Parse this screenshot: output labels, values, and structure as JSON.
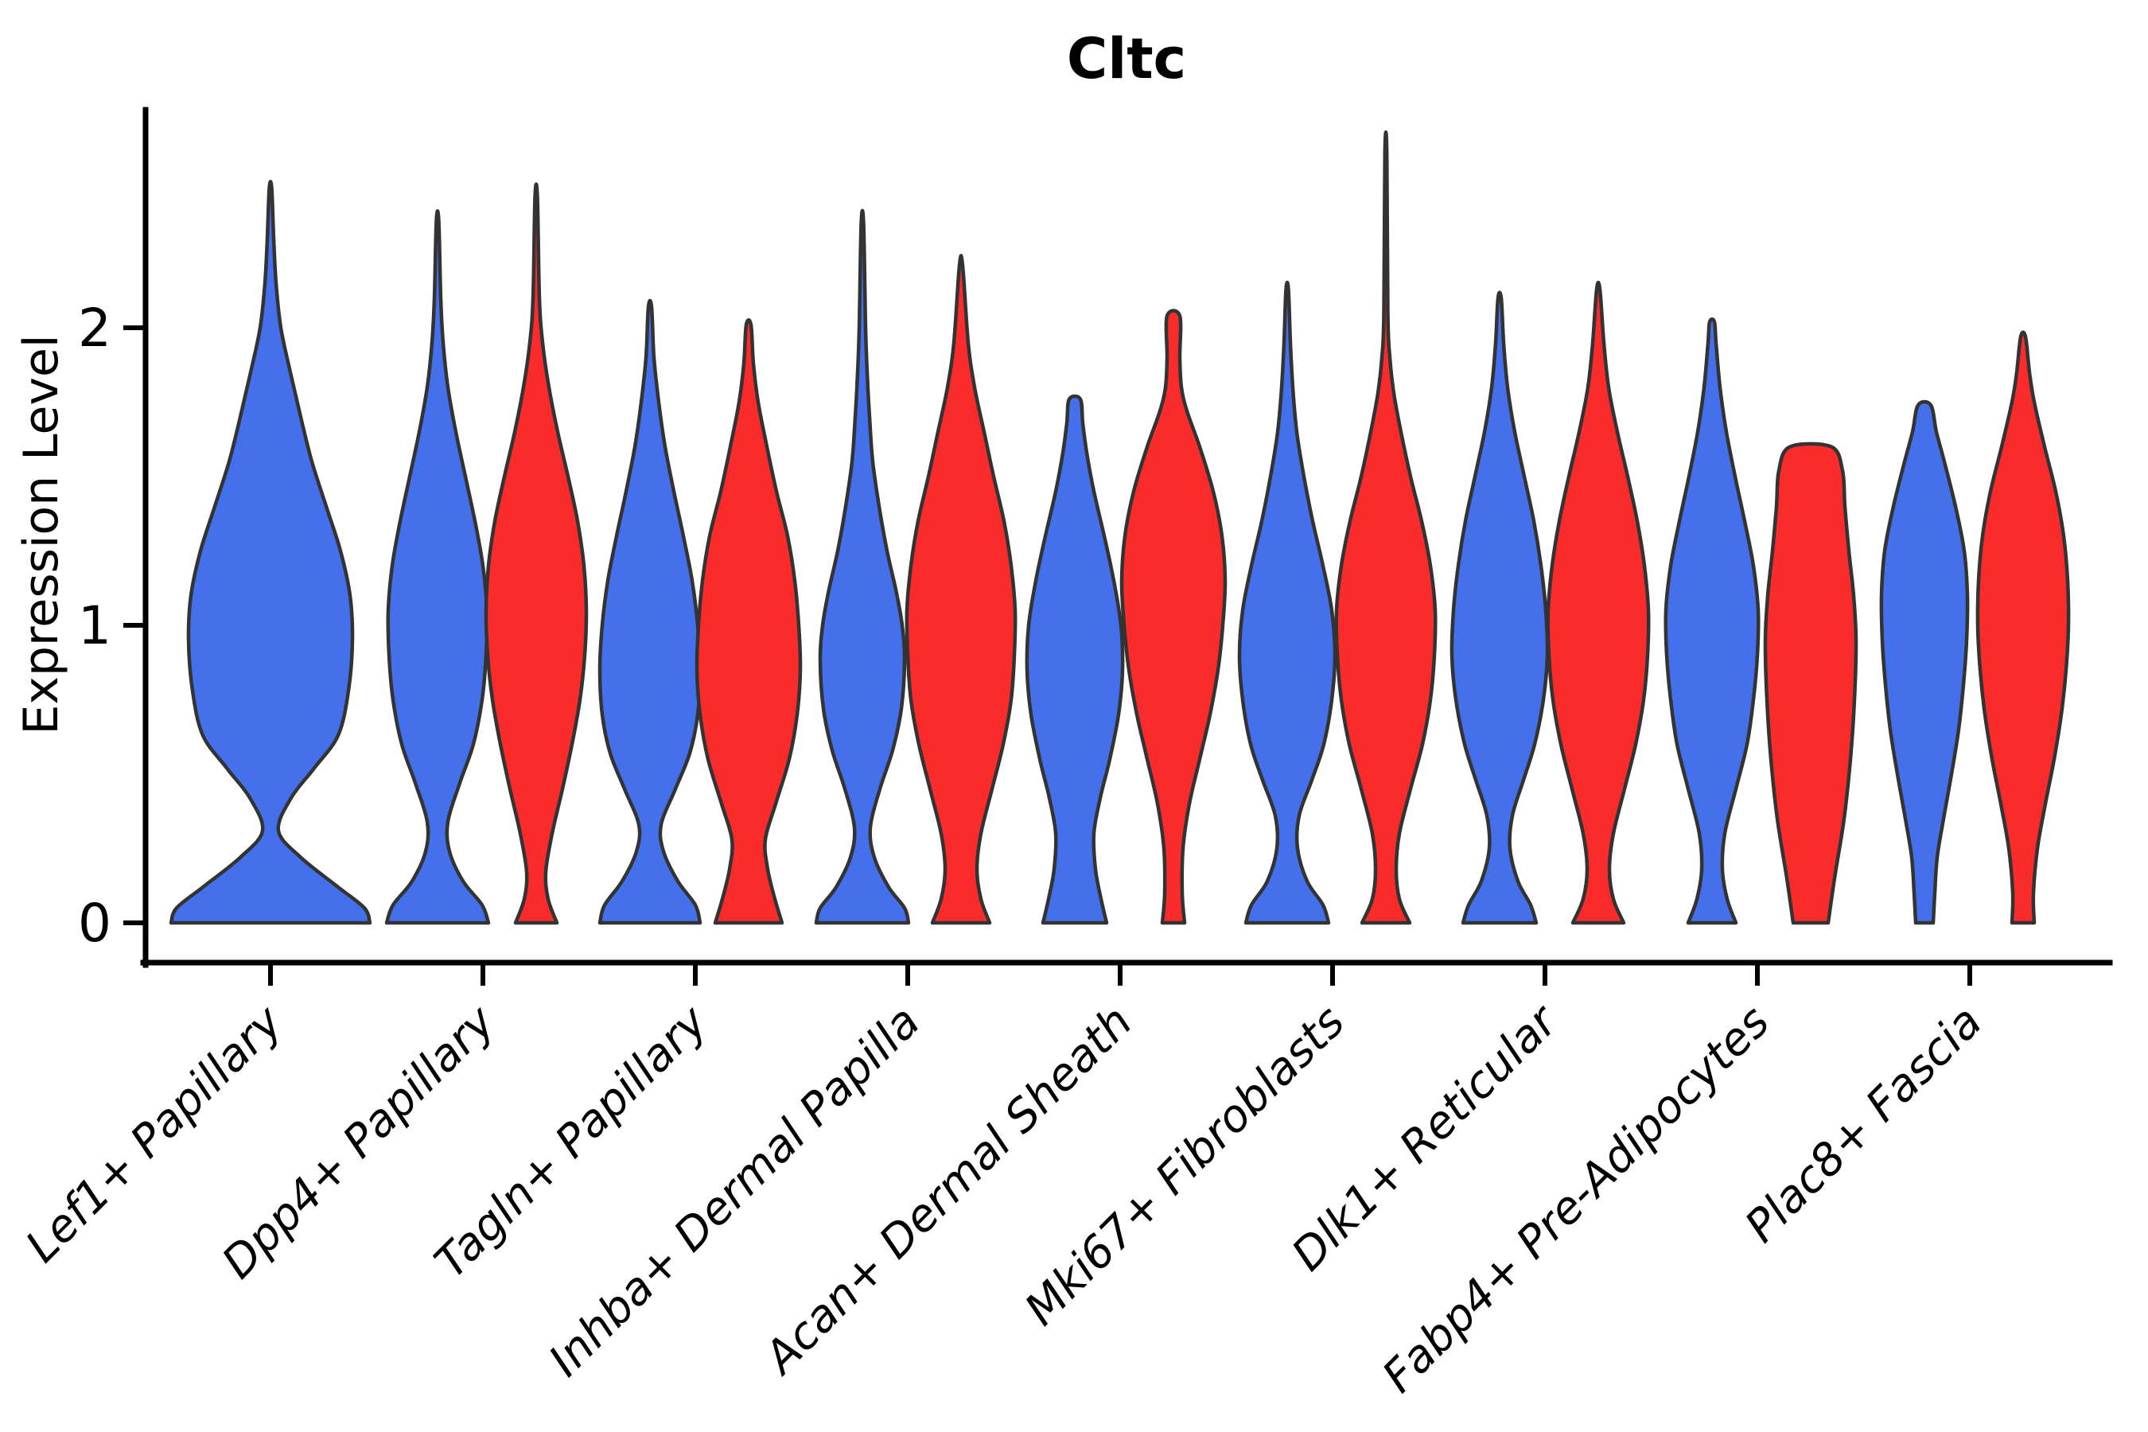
{
  "title": "Cltc",
  "y_axis": {
    "label": "Expression Level",
    "tick_labels": [
      "0",
      "1",
      "2"
    ]
  },
  "x_axis": {
    "categories": [
      "Lef1+ Papillary",
      "Dpp4+ Papillary",
      "Tagln+ Papillary",
      "Inhba+ Dermal Papilla",
      "Acan+ Dermal Sheath",
      "Mki67+ Fibroblasts",
      "Dlk1+ Reticular",
      "Fabp4+ Pre-Adipocytes",
      "Plac8+ Fascia"
    ]
  },
  "colors": {
    "blue": "#4470EC",
    "red": "#FA2B2B",
    "outline": "#333333",
    "axis": "#000000",
    "background": "#ffffff"
  },
  "chart_data": {
    "type": "violin",
    "title": "Cltc",
    "xlabel": "",
    "ylabel": "Expression Level",
    "y_ticks": [
      0,
      1,
      2
    ],
    "ylim": [
      -0.23,
      2.85
    ],
    "grid": false,
    "legend": "none",
    "categories": [
      "Lef1+ Papillary",
      "Dpp4+ Papillary",
      "Tagln+ Papillary",
      "Inhba+ Dermal Papilla",
      "Acan+ Dermal Sheath",
      "Mki67+ Fibroblasts",
      "Dlk1+ Reticular",
      "Fabp4+ Pre-Adipocytes",
      "Plac8+ Fascia"
    ],
    "series": [
      {
        "name": "blue",
        "color": "#4470EC"
      },
      {
        "name": "red",
        "color": "#FA2B2B"
      }
    ],
    "violins": [
      {
        "category_index": 0,
        "series": "blue",
        "position": "center",
        "peak_expression": 2.47,
        "profile": [
          [
            0,
            125
          ],
          [
            0.05,
            118
          ],
          [
            0.12,
            85
          ],
          [
            0.22,
            38
          ],
          [
            0.31,
            10
          ],
          [
            0.42,
            26
          ],
          [
            0.52,
            55
          ],
          [
            0.63,
            85
          ],
          [
            0.78,
            98
          ],
          [
            0.95,
            103
          ],
          [
            1.1,
            100
          ],
          [
            1.25,
            88
          ],
          [
            1.4,
            70
          ],
          [
            1.55,
            52
          ],
          [
            1.7,
            38
          ],
          [
            1.85,
            25
          ],
          [
            2.0,
            13
          ],
          [
            2.15,
            7
          ],
          [
            2.3,
            4
          ],
          [
            2.47,
            1.5
          ]
        ]
      },
      {
        "category_index": 1,
        "series": "blue",
        "position": "left",
        "peak_expression": 2.36,
        "profile": [
          [
            0,
            64
          ],
          [
            0.06,
            56
          ],
          [
            0.14,
            32
          ],
          [
            0.24,
            15
          ],
          [
            0.34,
            13
          ],
          [
            0.47,
            28
          ],
          [
            0.6,
            45
          ],
          [
            0.75,
            56
          ],
          [
            0.9,
            61
          ],
          [
            1.05,
            62
          ],
          [
            1.2,
            57
          ],
          [
            1.35,
            47
          ],
          [
            1.5,
            35
          ],
          [
            1.65,
            23
          ],
          [
            1.8,
            13
          ],
          [
            1.95,
            7
          ],
          [
            2.1,
            4
          ],
          [
            2.36,
            1.5
          ]
        ]
      },
      {
        "category_index": 1,
        "series": "red",
        "position": "right",
        "peak_expression": 2.44,
        "profile": [
          [
            0,
            26
          ],
          [
            0.08,
            15
          ],
          [
            0.17,
            12
          ],
          [
            0.3,
            20
          ],
          [
            0.45,
            33
          ],
          [
            0.6,
            45
          ],
          [
            0.75,
            55
          ],
          [
            0.9,
            61
          ],
          [
            1.05,
            63
          ],
          [
            1.2,
            60
          ],
          [
            1.35,
            52
          ],
          [
            1.5,
            40
          ],
          [
            1.65,
            27
          ],
          [
            1.8,
            16
          ],
          [
            1.95,
            8
          ],
          [
            2.1,
            4
          ],
          [
            2.44,
            1.5
          ]
        ]
      },
      {
        "category_index": 2,
        "series": "blue",
        "position": "left",
        "peak_expression": 2.07,
        "profile": [
          [
            0,
            63
          ],
          [
            0.06,
            57
          ],
          [
            0.14,
            35
          ],
          [
            0.24,
            17
          ],
          [
            0.33,
            14
          ],
          [
            0.45,
            32
          ],
          [
            0.57,
            50
          ],
          [
            0.7,
            60
          ],
          [
            0.85,
            63
          ],
          [
            1.0,
            60
          ],
          [
            1.15,
            53
          ],
          [
            1.3,
            42
          ],
          [
            1.45,
            30
          ],
          [
            1.6,
            19
          ],
          [
            1.75,
            11
          ],
          [
            1.9,
            5
          ],
          [
            2.07,
            2
          ]
        ]
      },
      {
        "category_index": 2,
        "series": "red",
        "position": "right",
        "peak_expression": 2.01,
        "profile": [
          [
            0,
            42
          ],
          [
            0.08,
            33
          ],
          [
            0.18,
            24
          ],
          [
            0.28,
            21
          ],
          [
            0.4,
            34
          ],
          [
            0.55,
            51
          ],
          [
            0.7,
            61
          ],
          [
            0.85,
            65
          ],
          [
            1.0,
            63
          ],
          [
            1.15,
            58
          ],
          [
            1.3,
            49
          ],
          [
            1.45,
            35
          ],
          [
            1.6,
            23
          ],
          [
            1.75,
            12
          ],
          [
            1.88,
            6
          ],
          [
            2.01,
            3
          ]
        ]
      },
      {
        "category_index": 3,
        "series": "blue",
        "position": "left",
        "peak_expression": 2.35,
        "profile": [
          [
            0,
            58
          ],
          [
            0.05,
            53
          ],
          [
            0.12,
            33
          ],
          [
            0.22,
            15
          ],
          [
            0.32,
            10
          ],
          [
            0.45,
            22
          ],
          [
            0.58,
            38
          ],
          [
            0.72,
            49
          ],
          [
            0.88,
            53
          ],
          [
            1.0,
            50
          ],
          [
            1.12,
            42
          ],
          [
            1.25,
            31
          ],
          [
            1.4,
            21
          ],
          [
            1.55,
            13
          ],
          [
            1.7,
            9
          ],
          [
            1.85,
            6
          ],
          [
            2.0,
            4
          ],
          [
            2.35,
            1.5
          ]
        ]
      },
      {
        "category_index": 3,
        "series": "red",
        "position": "right",
        "peak_expression": 2.21,
        "profile": [
          [
            0,
            36
          ],
          [
            0.08,
            25
          ],
          [
            0.18,
            20
          ],
          [
            0.3,
            25
          ],
          [
            0.45,
            39
          ],
          [
            0.6,
            53
          ],
          [
            0.75,
            63
          ],
          [
            0.9,
            67
          ],
          [
            1.05,
            68
          ],
          [
            1.2,
            63
          ],
          [
            1.35,
            54
          ],
          [
            1.5,
            41
          ],
          [
            1.65,
            29
          ],
          [
            1.8,
            17
          ],
          [
            1.95,
            9
          ],
          [
            2.21,
            2
          ]
        ]
      },
      {
        "category_index": 4,
        "series": "blue",
        "position": "left",
        "peak_expression": 1.76,
        "profile": [
          [
            0,
            40
          ],
          [
            0.08,
            33
          ],
          [
            0.18,
            26
          ],
          [
            0.3,
            24
          ],
          [
            0.42,
            32
          ],
          [
            0.55,
            44
          ],
          [
            0.7,
            55
          ],
          [
            0.85,
            60
          ],
          [
            1.0,
            58
          ],
          [
            1.15,
            49
          ],
          [
            1.3,
            37
          ],
          [
            1.45,
            24
          ],
          [
            1.58,
            15
          ],
          [
            1.68,
            10
          ],
          [
            1.76,
            7
          ]
        ]
      },
      {
        "category_index": 4,
        "series": "red",
        "position": "right",
        "peak_expression": 2.04,
        "profile": [
          [
            0,
            14
          ],
          [
            0.1,
            11
          ],
          [
            0.25,
            12
          ],
          [
            0.4,
            20
          ],
          [
            0.55,
            33
          ],
          [
            0.7,
            46
          ],
          [
            0.85,
            56
          ],
          [
            1.0,
            62
          ],
          [
            1.15,
            65
          ],
          [
            1.3,
            61
          ],
          [
            1.45,
            50
          ],
          [
            1.6,
            33
          ],
          [
            1.72,
            17
          ],
          [
            1.8,
            10
          ],
          [
            1.9,
            8
          ],
          [
            2.04,
            8
          ]
        ]
      },
      {
        "category_index": 5,
        "series": "blue",
        "position": "left",
        "peak_expression": 2.13,
        "profile": [
          [
            0,
            52
          ],
          [
            0.06,
            45
          ],
          [
            0.14,
            25
          ],
          [
            0.25,
            13
          ],
          [
            0.36,
            15
          ],
          [
            0.48,
            31
          ],
          [
            0.6,
            46
          ],
          [
            0.75,
            56
          ],
          [
            0.9,
            60
          ],
          [
            1.05,
            56
          ],
          [
            1.2,
            45
          ],
          [
            1.35,
            32
          ],
          [
            1.5,
            21
          ],
          [
            1.65,
            12
          ],
          [
            1.8,
            7
          ],
          [
            1.95,
            4
          ],
          [
            2.13,
            1.5
          ]
        ]
      },
      {
        "category_index": 5,
        "series": "red",
        "position": "right",
        "peak_expression": 2.59,
        "profile": [
          [
            0,
            30
          ],
          [
            0.08,
            17
          ],
          [
            0.18,
            13
          ],
          [
            0.3,
            17
          ],
          [
            0.45,
            31
          ],
          [
            0.6,
            46
          ],
          [
            0.75,
            56
          ],
          [
            0.9,
            61
          ],
          [
            1.05,
            62
          ],
          [
            1.2,
            56
          ],
          [
            1.35,
            45
          ],
          [
            1.5,
            31
          ],
          [
            1.65,
            19
          ],
          [
            1.78,
            10
          ],
          [
            1.9,
            5
          ],
          [
            2.05,
            2.5
          ],
          [
            2.59,
            1.2
          ]
        ]
      },
      {
        "category_index": 6,
        "series": "blue",
        "position": "left",
        "peak_expression": 2.1,
        "profile": [
          [
            0,
            46
          ],
          [
            0.06,
            39
          ],
          [
            0.14,
            23
          ],
          [
            0.25,
            13
          ],
          [
            0.36,
            16
          ],
          [
            0.48,
            30
          ],
          [
            0.6,
            44
          ],
          [
            0.75,
            55
          ],
          [
            0.9,
            60
          ],
          [
            1.05,
            58
          ],
          [
            1.2,
            52
          ],
          [
            1.35,
            43
          ],
          [
            1.5,
            31
          ],
          [
            1.65,
            19
          ],
          [
            1.8,
            10
          ],
          [
            1.95,
            5
          ],
          [
            2.1,
            2
          ]
        ]
      },
      {
        "category_index": 6,
        "series": "red",
        "position": "right",
        "peak_expression": 2.13,
        "profile": [
          [
            0,
            32
          ],
          [
            0.08,
            19
          ],
          [
            0.18,
            14
          ],
          [
            0.3,
            19
          ],
          [
            0.45,
            33
          ],
          [
            0.6,
            47
          ],
          [
            0.75,
            57
          ],
          [
            0.9,
            62
          ],
          [
            1.05,
            63
          ],
          [
            1.2,
            58
          ],
          [
            1.35,
            49
          ],
          [
            1.5,
            37
          ],
          [
            1.65,
            24
          ],
          [
            1.8,
            13
          ],
          [
            1.95,
            7
          ],
          [
            2.13,
            2
          ]
        ]
      },
      {
        "category_index": 7,
        "series": "blue",
        "position": "left",
        "peak_expression": 2.02,
        "profile": [
          [
            0,
            30
          ],
          [
            0.08,
            19
          ],
          [
            0.18,
            13
          ],
          [
            0.3,
            16
          ],
          [
            0.45,
            30
          ],
          [
            0.6,
            44
          ],
          [
            0.75,
            52
          ],
          [
            0.9,
            57
          ],
          [
            1.05,
            58
          ],
          [
            1.2,
            52
          ],
          [
            1.35,
            41
          ],
          [
            1.5,
            29
          ],
          [
            1.65,
            18
          ],
          [
            1.8,
            10
          ],
          [
            1.95,
            5
          ],
          [
            2.02,
            3
          ]
        ]
      },
      {
        "category_index": 7,
        "series": "red",
        "position": "right",
        "peak_expression": 1.6,
        "profile": [
          [
            0,
            22
          ],
          [
            0.15,
            30
          ],
          [
            0.35,
            42
          ],
          [
            0.55,
            50
          ],
          [
            0.75,
            55
          ],
          [
            0.95,
            57
          ],
          [
            1.1,
            54
          ],
          [
            1.25,
            48
          ],
          [
            1.4,
            43
          ],
          [
            1.52,
            40
          ],
          [
            1.6,
            26
          ]
        ]
      },
      {
        "category_index": 8,
        "series": "blue",
        "position": "left",
        "peak_expression": 1.74,
        "profile": [
          [
            0,
            11
          ],
          [
            0.1,
            13
          ],
          [
            0.22,
            16
          ],
          [
            0.35,
            24
          ],
          [
            0.5,
            34
          ],
          [
            0.65,
            43
          ],
          [
            0.8,
            49
          ],
          [
            0.95,
            53
          ],
          [
            1.1,
            54
          ],
          [
            1.25,
            50
          ],
          [
            1.4,
            39
          ],
          [
            1.55,
            25
          ],
          [
            1.65,
            15
          ],
          [
            1.74,
            8
          ]
        ]
      },
      {
        "category_index": 8,
        "series": "red",
        "position": "right",
        "peak_expression": 1.97,
        "profile": [
          [
            0,
            14
          ],
          [
            0.1,
            13
          ],
          [
            0.25,
            18
          ],
          [
            0.4,
            28
          ],
          [
            0.55,
            39
          ],
          [
            0.7,
            48
          ],
          [
            0.85,
            54
          ],
          [
            1.0,
            57
          ],
          [
            1.15,
            56
          ],
          [
            1.3,
            51
          ],
          [
            1.45,
            41
          ],
          [
            1.6,
            27
          ],
          [
            1.75,
            14
          ],
          [
            1.85,
            8
          ],
          [
            1.97,
            3
          ]
        ]
      }
    ]
  }
}
